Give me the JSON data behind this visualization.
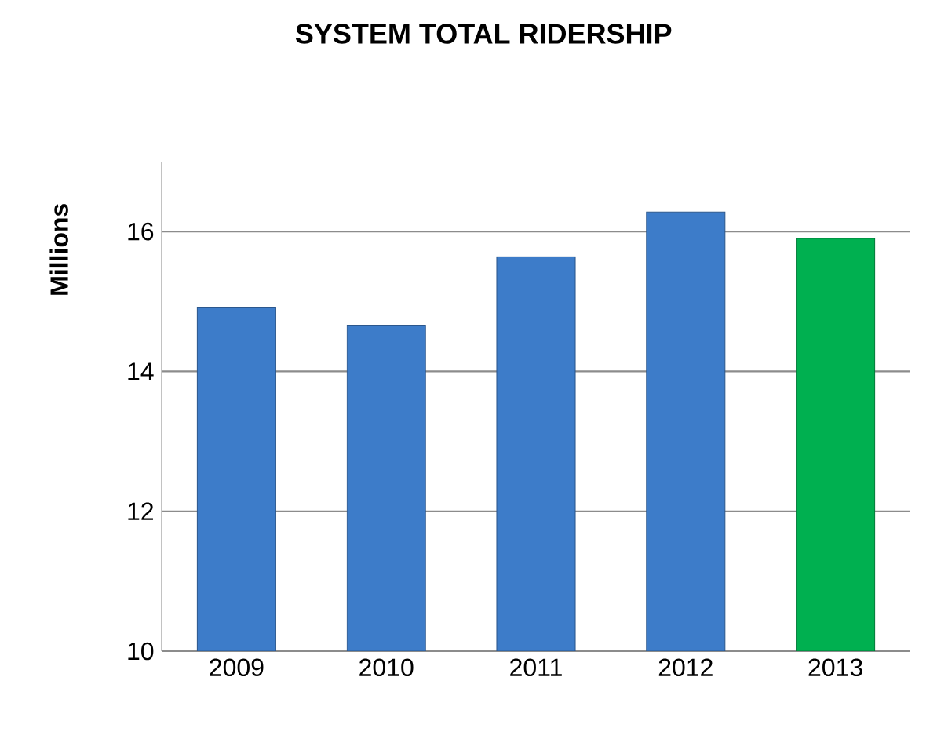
{
  "chart_data": {
    "type": "bar",
    "title": "SYSTEM TOTAL RIDERSHIP",
    "ylabel": "Millions",
    "categories": [
      "2009",
      "2010",
      "2011",
      "2012",
      "2013"
    ],
    "values": [
      14.92,
      14.66,
      15.64,
      16.28,
      15.9
    ],
    "colors": [
      "#3d7cc9",
      "#3d7cc9",
      "#3d7cc9",
      "#3d7cc9",
      "#00b050"
    ],
    "ylim": [
      10,
      17
    ],
    "yticks": [
      10,
      12,
      14,
      16
    ],
    "grid": "y"
  }
}
